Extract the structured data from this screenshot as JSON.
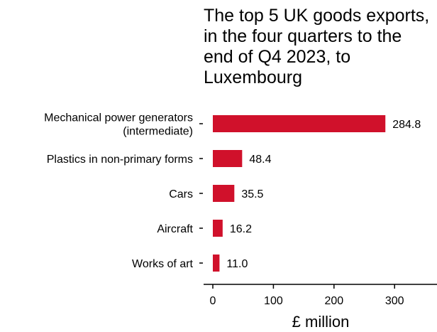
{
  "chart_data": {
    "type": "bar",
    "orientation": "horizontal",
    "title": "The top 5 UK goods exports, in the four quarters to the end of Q4 2023, to Luxembourg",
    "xlabel": "£ million",
    "ylabel": "",
    "categories": [
      [
        "Mechanical power generators",
        "(intermediate)"
      ],
      [
        "Plastics in non-primary forms"
      ],
      [
        "Cars"
      ],
      [
        "Aircraft"
      ],
      [
        "Works of art"
      ]
    ],
    "values": [
      284.8,
      48.4,
      35.5,
      16.2,
      11.0
    ],
    "data_labels": [
      "284.8",
      "48.4",
      "35.5",
      "16.2",
      "11.0"
    ],
    "xlim": [
      0,
      370
    ],
    "xticks": [
      0,
      100,
      200,
      300
    ],
    "grid": false,
    "legend": "none",
    "bar_color": "#d0112b"
  }
}
